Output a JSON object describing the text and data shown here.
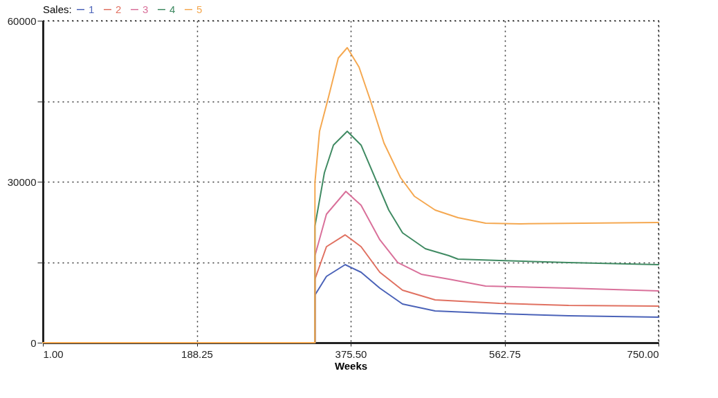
{
  "chart_data": {
    "type": "line",
    "legend_title": "Sales:",
    "xlabel": "Weeks",
    "xlim": [
      1,
      750
    ],
    "xticks": [
      {
        "value": 1,
        "label": "1.00"
      },
      {
        "value": 188.25,
        "label": "188.25"
      },
      {
        "value": 375.5,
        "label": "375.50"
      },
      {
        "value": 562.75,
        "label": "562.75"
      },
      {
        "value": 750,
        "label": "750.00"
      }
    ],
    "ylim": [
      0,
      60000
    ],
    "yticks": [
      0,
      {
        "value": 15000,
        "label": null
      },
      30000,
      {
        "value": 45000,
        "label": null
      },
      60000
    ],
    "grid": true,
    "legend": "top left",
    "marker": "none",
    "line_style": "solid",
    "series": [
      {
        "name": "1",
        "color": "#4a62b8",
        "x": [
          1,
          332,
          332,
          346,
          368.8,
          388.1,
          410.9,
          438.6,
          478.2,
          556.5,
          640.6,
          750
        ],
        "values": [
          0,
          0,
          8880,
          12360,
          14550,
          13130,
          10170,
          7210,
          5920,
          5410,
          5020,
          4760
        ]
      },
      {
        "name": "2",
        "color": "#e07060",
        "x": [
          1,
          332,
          332,
          346,
          368.8,
          388.1,
          410.9,
          438.6,
          478.2,
          556.5,
          640.6,
          750
        ],
        "values": [
          0,
          0,
          11850,
          17900,
          20090,
          17900,
          13130,
          9790,
          7980,
          7340,
          6950,
          6820
        ]
      },
      {
        "name": "3",
        "color": "#d9709a",
        "x": [
          1,
          332,
          332,
          346,
          369.6,
          388.1,
          410.9,
          432.7,
          461.4,
          495,
          539.6,
          640.6,
          750
        ],
        "values": [
          0,
          0,
          16220,
          23950,
          28200,
          25620,
          19190,
          14940,
          12750,
          11850,
          10560,
          10170,
          9660
        ]
      },
      {
        "name": "4",
        "color": "#3f8a62",
        "x": [
          1,
          332,
          332,
          343.5,
          354.5,
          371.3,
          388.1,
          405,
          421.8,
          438.6,
          466.4,
          495,
          506,
          556.5,
          640.6,
          750
        ],
        "values": [
          0,
          0,
          21760,
          31680,
          36830,
          39400,
          36830,
          30770,
          24720,
          20470,
          17510,
          16220,
          15580,
          15320,
          14940,
          14550
        ]
      },
      {
        "name": "5",
        "color": "#f5a850",
        "x": [
          1,
          332,
          332,
          337.6,
          348.6,
          360.4,
          371.3,
          385.6,
          399.1,
          416,
          436.1,
          452.9,
          478.2,
          506,
          539.6,
          581.7,
          750
        ],
        "values": [
          0,
          0,
          29870,
          39400,
          45840,
          53050,
          54980,
          51370,
          45320,
          37210,
          30770,
          27300,
          24720,
          23300,
          22280,
          22150,
          22400
        ]
      }
    ]
  }
}
